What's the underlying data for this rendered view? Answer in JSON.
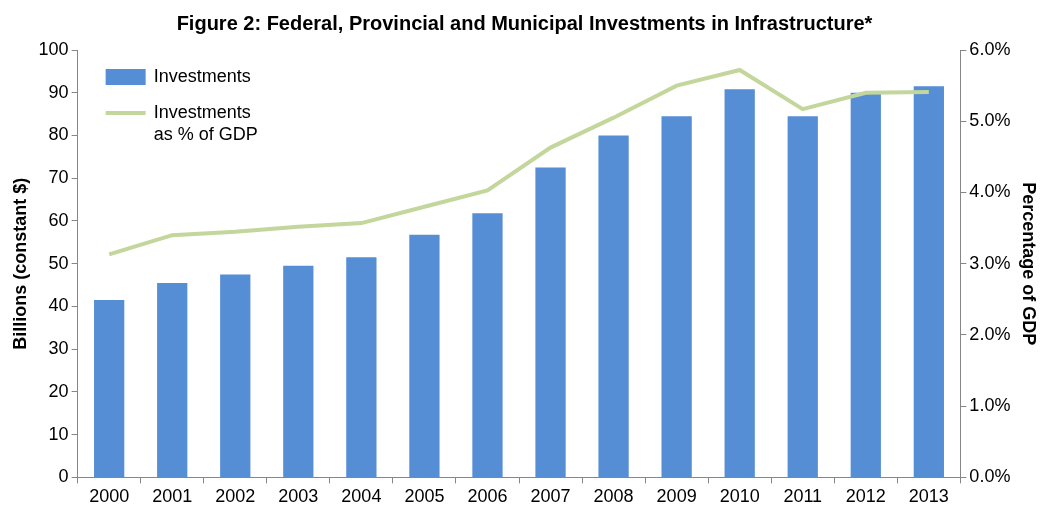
{
  "chart_data": {
    "type": "bar",
    "title": "Figure 2: Federal, Provincial and Municipal Investments in Infrastructure*",
    "categories": [
      "2000",
      "2001",
      "2002",
      "2003",
      "2004",
      "2005",
      "2006",
      "2007",
      "2008",
      "2009",
      "2010",
      "2011",
      "2012",
      "2013"
    ],
    "series": [
      {
        "name": "Investments",
        "type": "bar",
        "color": "#558ed5",
        "values": [
          41.5,
          45.5,
          47.5,
          49.5,
          51.5,
          56.8,
          61.8,
          72.5,
          80,
          84.5,
          90.8,
          84.5,
          90,
          91.5
        ]
      },
      {
        "name": "Investments as % of GDP",
        "type": "line",
        "color": "#c3d69b",
        "axis": "y2",
        "marker": "none",
        "line_style": "solid",
        "values": [
          3.13,
          3.4,
          3.45,
          3.52,
          3.57,
          3.8,
          4.03,
          4.63,
          5.05,
          5.5,
          5.72,
          5.17,
          5.4,
          5.41
        ]
      }
    ],
    "y_label": "Billions (constant $)",
    "y2_label": "Percentage of GDP",
    "ylim": [
      0,
      100
    ],
    "yticks": [
      0,
      10,
      20,
      30,
      40,
      50,
      60,
      70,
      80,
      90,
      100
    ],
    "y2lim": [
      0,
      6
    ],
    "y2ticks": [
      {
        "value": 0,
        "label": "0.0%"
      },
      {
        "value": 1,
        "label": "1.0%"
      },
      {
        "value": 2,
        "label": "2.0%"
      },
      {
        "value": 3,
        "label": "3.0%"
      },
      {
        "value": 4,
        "label": "4.0%"
      },
      {
        "value": 5,
        "label": "5.0%"
      },
      {
        "value": 6,
        "label": "6.0%"
      }
    ],
    "grid": false,
    "legend": "upper left"
  }
}
